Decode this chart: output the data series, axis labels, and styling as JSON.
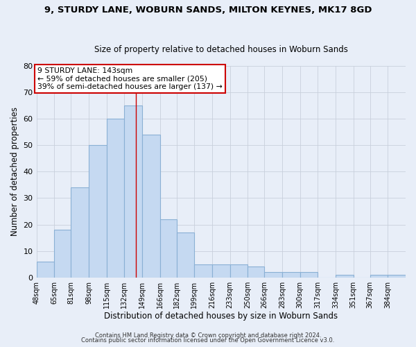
{
  "title": "9, STURDY LANE, WOBURN SANDS, MILTON KEYNES, MK17 8GD",
  "subtitle": "Size of property relative to detached houses in Woburn Sands",
  "xlabel": "Distribution of detached houses by size in Woburn Sands",
  "ylabel": "Number of detached properties",
  "bar_labels": [
    "48sqm",
    "65sqm",
    "81sqm",
    "98sqm",
    "115sqm",
    "132sqm",
    "149sqm",
    "166sqm",
    "182sqm",
    "199sqm",
    "216sqm",
    "233sqm",
    "250sqm",
    "266sqm",
    "283sqm",
    "300sqm",
    "317sqm",
    "334sqm",
    "351sqm",
    "367sqm",
    "384sqm"
  ],
  "bar_heights": [
    6,
    18,
    34,
    50,
    60,
    65,
    54,
    22,
    17,
    5,
    5,
    5,
    4,
    2,
    2,
    2,
    0,
    1,
    0,
    1,
    1
  ],
  "bar_color": "#c5d9f1",
  "bar_edge_color": "#8ab0d4",
  "grid_color": "#c8d0dc",
  "bg_color": "#e8eef8",
  "marker_line_color": "#cc0000",
  "annotation_line1": "9 STURDY LANE: 143sqm",
  "annotation_line2": "← 59% of detached houses are smaller (205)",
  "annotation_line3": "39% of semi-detached houses are larger (137) →",
  "annotation_box_color": "#ffffff",
  "annotation_box_edge": "#cc0000",
  "footer_line1": "Contains HM Land Registry data © Crown copyright and database right 2024.",
  "footer_line2": "Contains public sector information licensed under the Open Government Licence v3.0.",
  "ylim": [
    0,
    80
  ],
  "yticks": [
    0,
    10,
    20,
    30,
    40,
    50,
    60,
    70,
    80
  ],
  "bin_edges": [
    48,
    65,
    81,
    98,
    115,
    132,
    149,
    166,
    182,
    199,
    216,
    233,
    250,
    266,
    283,
    300,
    317,
    334,
    351,
    367,
    384,
    401
  ]
}
